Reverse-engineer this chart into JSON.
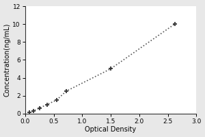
{
  "x": [
    0.07,
    0.15,
    0.25,
    0.38,
    0.55,
    0.72,
    1.5,
    2.62
  ],
  "y": [
    0.1,
    0.3,
    0.6,
    1.0,
    1.5,
    2.5,
    5.0,
    10.0
  ],
  "xlabel": "Optical Density",
  "ylabel": "Concentration(ng/mL)",
  "xlim": [
    0,
    3
  ],
  "ylim": [
    0,
    12
  ],
  "xticks": [
    0,
    0.5,
    1,
    1.5,
    2,
    2.5,
    3
  ],
  "yticks": [
    0,
    2,
    4,
    6,
    8,
    10,
    12
  ],
  "line_color": "#555555",
  "marker_color": "#333333",
  "background_color": "#e8e8e8",
  "plot_bg_color": "#ffffff",
  "line_style": "dotted",
  "linewidth": 1.2,
  "label_fontsize": 7,
  "tick_fontsize": 6.5
}
